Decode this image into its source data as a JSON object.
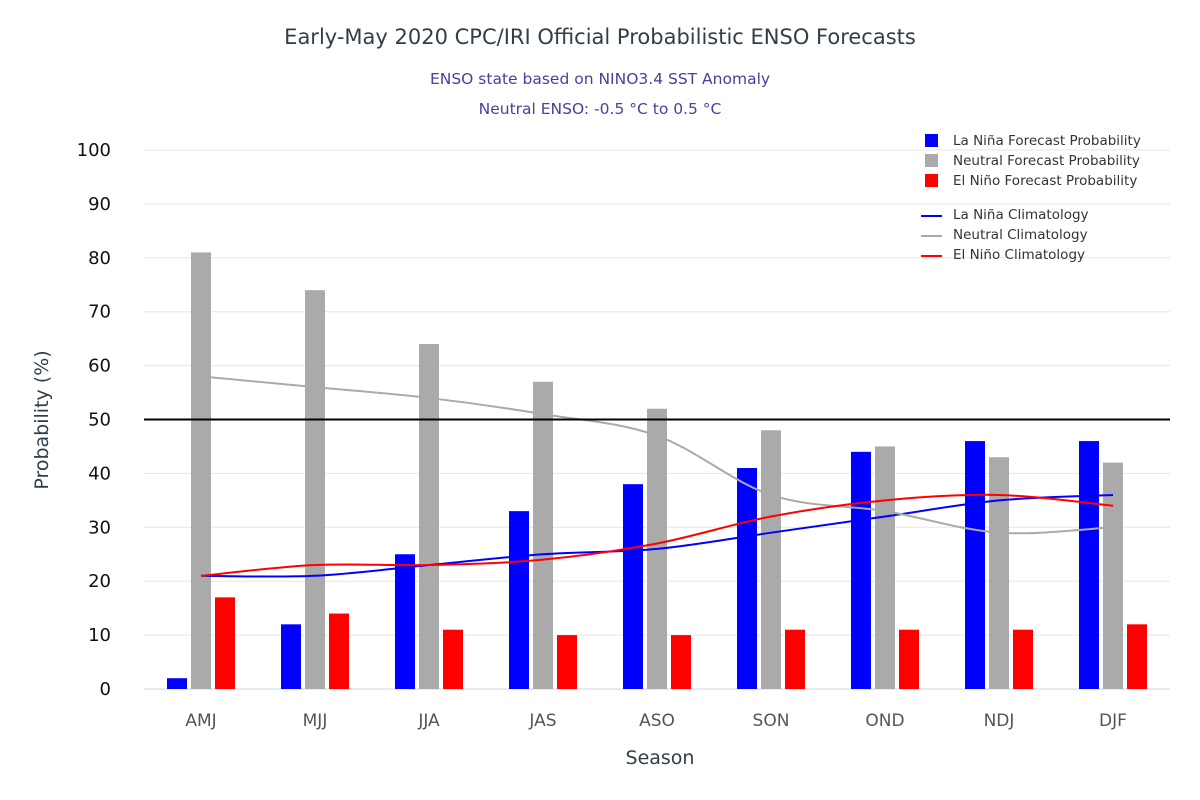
{
  "chart_data": {
    "type": "bar",
    "title": "Early-May 2020 CPC/IRI Official Probabilistic ENSO Forecasts",
    "subtitle_lines": [
      "ENSO state based on NINO3.4 SST Anomaly",
      "Neutral ENSO: -0.5 °C to 0.5 °C"
    ],
    "xlabel": "Season",
    "ylabel": "Probability (%)",
    "ylim": [
      0,
      100
    ],
    "yticks": [
      0,
      10,
      20,
      30,
      40,
      50,
      60,
      70,
      80,
      90,
      100
    ],
    "grid": true,
    "reference_line": {
      "value": 50,
      "color": "#000000"
    },
    "legend_position": "top-right",
    "categories": [
      "AMJ",
      "MJJ",
      "JJA",
      "JAS",
      "ASO",
      "SON",
      "OND",
      "NDJ",
      "DJF"
    ],
    "series": [
      {
        "name": "La Niña Forecast Probability",
        "kind": "bar",
        "color": "#0000ff",
        "values": [
          2,
          12,
          25,
          33,
          38,
          41,
          44,
          46,
          46
        ]
      },
      {
        "name": "Neutral Forecast Probability",
        "kind": "bar",
        "color": "#aaaaaa",
        "values": [
          81,
          74,
          64,
          57,
          52,
          48,
          45,
          43,
          42
        ]
      },
      {
        "name": "El Niño Forecast Probability",
        "kind": "bar",
        "color": "#ff0000",
        "values": [
          17,
          14,
          11,
          10,
          10,
          11,
          11,
          11,
          12
        ]
      },
      {
        "name": "La Niña Climatology",
        "kind": "line",
        "color": "#0000ff",
        "values": [
          21,
          21,
          23,
          25,
          26,
          29,
          32,
          35,
          36
        ]
      },
      {
        "name": "Neutral Climatology",
        "kind": "line",
        "color": "#aaaaaa",
        "values": [
          58,
          56,
          54,
          51,
          47,
          36,
          33,
          29,
          30
        ]
      },
      {
        "name": "El Niño Climatology",
        "kind": "line",
        "color": "#ff0000",
        "values": [
          21,
          23,
          23,
          24,
          27,
          32,
          35,
          36,
          34
        ]
      }
    ]
  }
}
